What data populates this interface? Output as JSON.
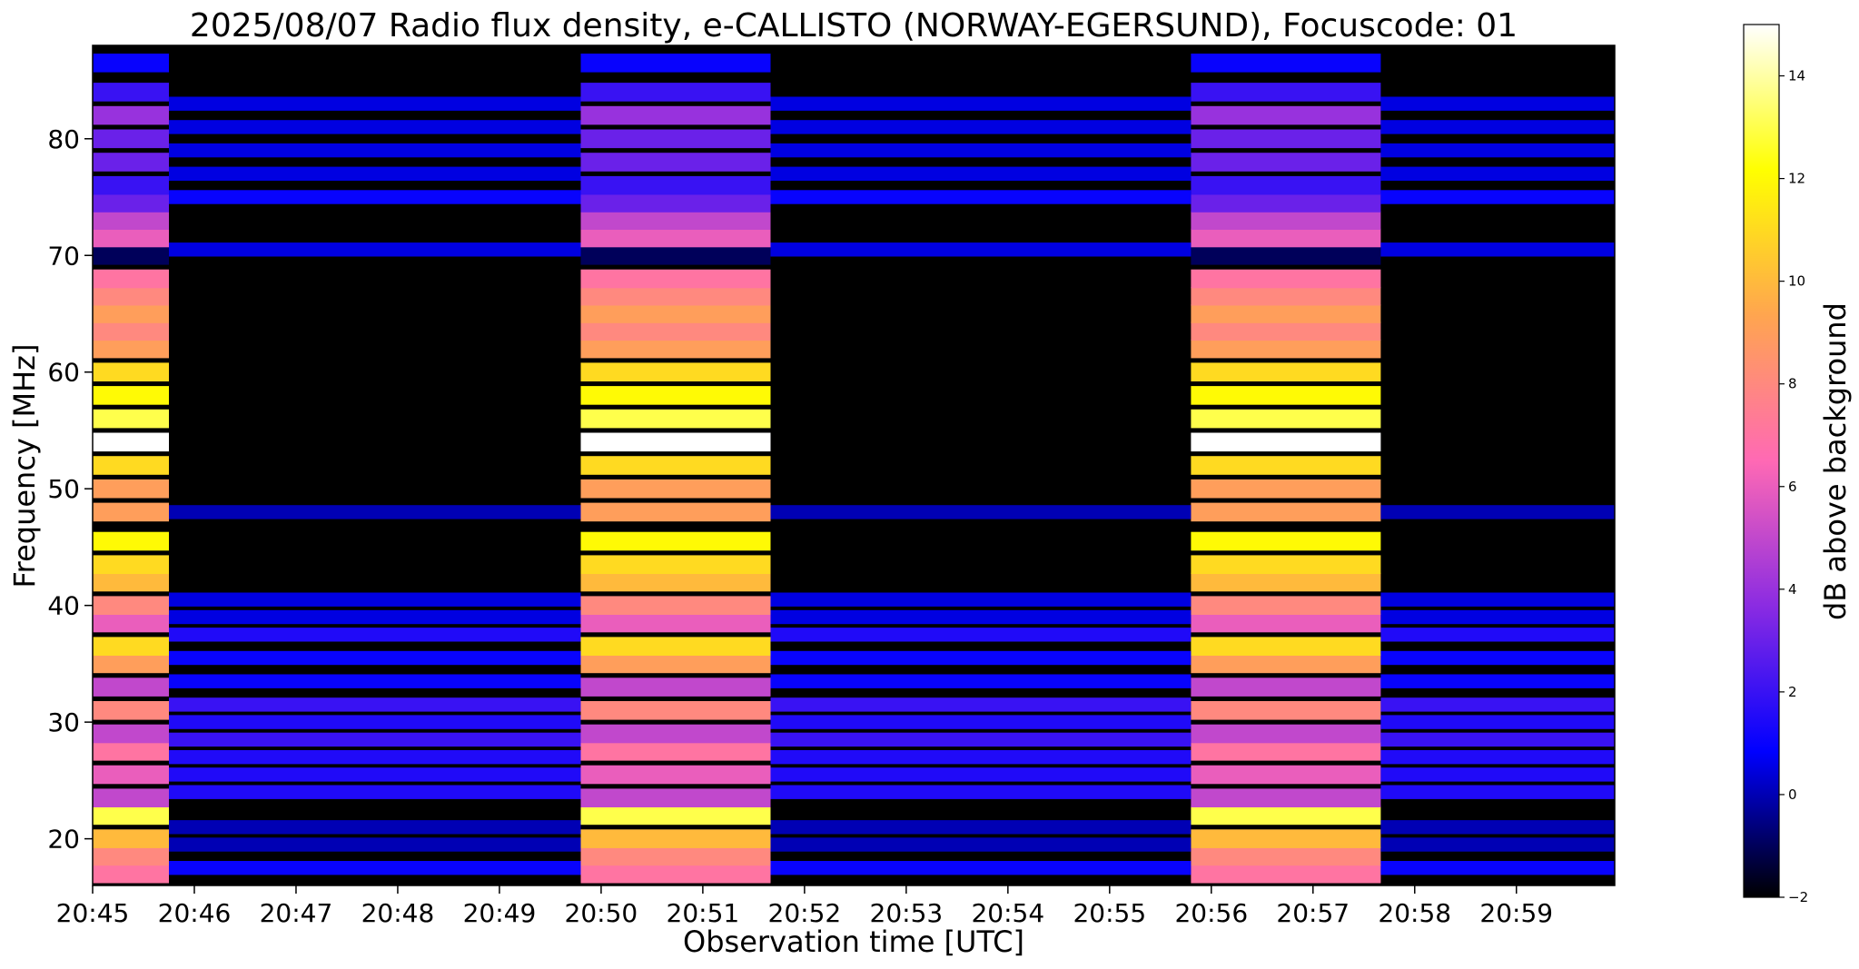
{
  "chart_data": {
    "type": "heatmap",
    "title": "2025/08/07  Radio flux density, e-CALLISTO (NORWAY-EGERSUND), Focuscode: 01",
    "xlabel": "Observation time [UTC]",
    "ylabel": "Frequency [MHz]",
    "colorbar_label": "dB above background",
    "x_range": [
      "20:45:00",
      "20:59:58"
    ],
    "ylim": [
      16,
      88
    ],
    "x_ticks": [
      "20:45",
      "20:46",
      "20:47",
      "20:48",
      "20:49",
      "20:50",
      "20:51",
      "20:52",
      "20:53",
      "20:54",
      "20:55",
      "20:56",
      "20:57",
      "20:58",
      "20:59"
    ],
    "y_ticks": [
      20,
      30,
      40,
      50,
      60,
      70,
      80
    ],
    "colorbar_range": [
      -2,
      15
    ],
    "colorbar_ticks": [
      -2,
      0,
      2,
      4,
      6,
      8,
      10,
      12,
      14
    ],
    "colormap": "gnuplot2",
    "colormap_stops": [
      "#000000",
      "#0000ff",
      "#8a2be2",
      "#ff69b4",
      "#ffa54f",
      "#ffff00",
      "#ffffff"
    ],
    "bright_intervals": [
      {
        "start": "20:45:00",
        "end": "20:45:45"
      },
      {
        "start": "20:49:48",
        "end": "20:51:40"
      },
      {
        "start": "20:55:48",
        "end": "20:57:40"
      }
    ],
    "bright_band_levels": [
      {
        "mhz": 17,
        "db": 7
      },
      {
        "mhz": 18.5,
        "db": 8
      },
      {
        "mhz": 20,
        "db": 10
      },
      {
        "mhz": 22,
        "db": 13
      },
      {
        "mhz": 23.5,
        "db": 5
      },
      {
        "mhz": 25.5,
        "db": 6
      },
      {
        "mhz": 27.5,
        "db": 7
      },
      {
        "mhz": 29,
        "db": 5
      },
      {
        "mhz": 31,
        "db": 8
      },
      {
        "mhz": 33,
        "db": 5
      },
      {
        "mhz": 35,
        "db": 9
      },
      {
        "mhz": 36.5,
        "db": 11
      },
      {
        "mhz": 38.5,
        "db": 6
      },
      {
        "mhz": 40,
        "db": 8
      },
      {
        "mhz": 42,
        "db": 10
      },
      {
        "mhz": 43.5,
        "db": 11
      },
      {
        "mhz": 45.5,
        "db": 12
      },
      {
        "mhz": 48,
        "db": 9
      },
      {
        "mhz": 50,
        "db": 9
      },
      {
        "mhz": 52,
        "db": 11
      },
      {
        "mhz": 54,
        "db": 15
      },
      {
        "mhz": 56,
        "db": 13
      },
      {
        "mhz": 58,
        "db": 12
      },
      {
        "mhz": 60,
        "db": 11
      },
      {
        "mhz": 62,
        "db": 9
      },
      {
        "mhz": 63.5,
        "db": 8
      },
      {
        "mhz": 65,
        "db": 9
      },
      {
        "mhz": 66.5,
        "db": 8
      },
      {
        "mhz": 68,
        "db": 7
      },
      {
        "mhz": 70,
        "db": -1
      },
      {
        "mhz": 71.5,
        "db": 6
      },
      {
        "mhz": 73,
        "db": 5
      },
      {
        "mhz": 74.5,
        "db": 3
      },
      {
        "mhz": 76,
        "db": 2
      },
      {
        "mhz": 78,
        "db": 3
      },
      {
        "mhz": 80,
        "db": 3
      },
      {
        "mhz": 82,
        "db": 4
      },
      {
        "mhz": 84,
        "db": 2
      },
      {
        "mhz": 86.5,
        "db": 1
      }
    ],
    "quiet_band_levels": [
      {
        "mhz": 17.5,
        "db": 1
      },
      {
        "mhz": 19.5,
        "db": 0
      },
      {
        "mhz": 21,
        "db": 0
      },
      {
        "mhz": 24,
        "db": 1.5
      },
      {
        "mhz": 25.5,
        "db": 1.5
      },
      {
        "mhz": 27,
        "db": 1.5
      },
      {
        "mhz": 28.5,
        "db": 2
      },
      {
        "mhz": 30,
        "db": 1.5
      },
      {
        "mhz": 31.5,
        "db": 2
      },
      {
        "mhz": 33.5,
        "db": 1
      },
      {
        "mhz": 35.5,
        "db": 1
      },
      {
        "mhz": 37.5,
        "db": 1.5
      },
      {
        "mhz": 39,
        "db": 0.5
      },
      {
        "mhz": 40.5,
        "db": 0.5
      },
      {
        "mhz": 48,
        "db": 0
      },
      {
        "mhz": 70.5,
        "db": 0.5
      },
      {
        "mhz": 75,
        "db": 1
      },
      {
        "mhz": 77,
        "db": 0.5
      },
      {
        "mhz": 79,
        "db": 0.5
      },
      {
        "mhz": 81,
        "db": 0.5
      },
      {
        "mhz": 83,
        "db": 0.5
      }
    ]
  }
}
